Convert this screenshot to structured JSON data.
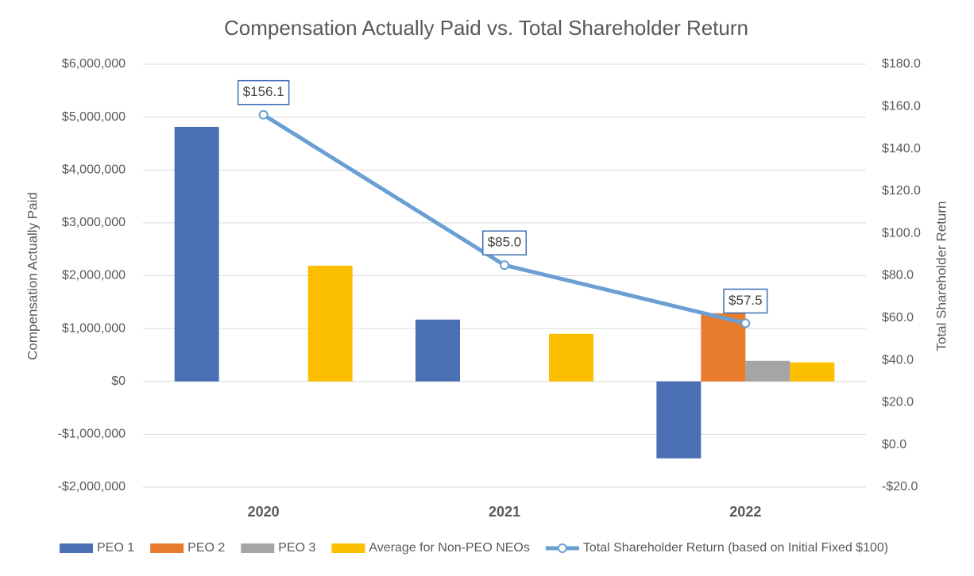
{
  "chart_data": {
    "type": "bar",
    "title": "Compensation Actually Paid vs. Total Shareholder Return",
    "y_label": "Compensation Actually Paid",
    "y2_label": "Total Shareholder Return",
    "categories": [
      "2020",
      "2021",
      "2022"
    ],
    "series": [
      {
        "name": "PEO 1",
        "color": "#4a6fb5",
        "values": [
          4815000,
          1170000,
          -1455000
        ]
      },
      {
        "name": "PEO 2",
        "color": "#e87b2c",
        "values": [
          null,
          null,
          1290000
        ]
      },
      {
        "name": "PEO 3",
        "color": "#a5a5a5",
        "values": [
          null,
          null,
          390000
        ]
      },
      {
        "name": "Average for Non-PEO NEOs",
        "color": "#fbbf00",
        "values": [
          2190000,
          900000,
          360000
        ]
      },
      {
        "name": "Total Shareholder Return (based on Initial Fixed $100)",
        "type": "line",
        "axis": "y2",
        "color": "#6a9fd3",
        "values": [
          156.1,
          85.0,
          57.5
        ],
        "value_labels": [
          "$156.1",
          "$85.0",
          "$57.5"
        ]
      }
    ],
    "ylim": [
      -2000000,
      6000000
    ],
    "yticks": [
      {
        "value": -2000000,
        "label": "-$2,000,000"
      },
      {
        "value": -1000000,
        "label": "-$1,000,000"
      },
      {
        "value": 0,
        "label": "$0"
      },
      {
        "value": 1000000,
        "label": "$1,000,000"
      },
      {
        "value": 2000000,
        "label": "$2,000,000"
      },
      {
        "value": 3000000,
        "label": "$3,000,000"
      },
      {
        "value": 4000000,
        "label": "$4,000,000"
      },
      {
        "value": 5000000,
        "label": "$5,000,000"
      },
      {
        "value": 6000000,
        "label": "$6,000,000"
      }
    ],
    "y2lim": [
      -20,
      180
    ],
    "y2ticks": [
      {
        "value": -20,
        "label": "-$20.0"
      },
      {
        "value": 0,
        "label": "$0.0"
      },
      {
        "value": 20,
        "label": "$20.0"
      },
      {
        "value": 40,
        "label": "$40.0"
      },
      {
        "value": 60,
        "label": "$60.0"
      },
      {
        "value": 80,
        "label": "$80.0"
      },
      {
        "value": 100,
        "label": "$100.0"
      },
      {
        "value": 120,
        "label": "$120.0"
      },
      {
        "value": 140,
        "label": "$140.0"
      },
      {
        "value": 160,
        "label": "$160.0"
      },
      {
        "value": 180,
        "label": "$180.0"
      }
    ],
    "grid": true,
    "legend": "bottom"
  }
}
